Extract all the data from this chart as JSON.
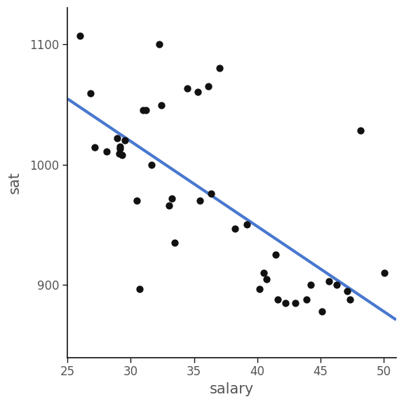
{
  "salary": [
    25.994,
    26.8,
    27.17,
    28.094,
    28.95,
    29.078,
    29.132,
    29.161,
    29.326,
    29.542,
    30.456,
    30.678,
    30.993,
    31.223,
    31.667,
    32.252,
    32.4,
    33.016,
    33.234,
    33.486,
    34.449,
    35.28,
    35.49,
    36.152,
    36.361,
    37.047,
    38.243,
    39.167,
    40.196,
    40.523,
    40.76,
    41.48,
    41.623,
    42.256,
    43.04,
    43.89,
    44.218,
    45.117,
    45.695,
    46.31,
    47.111,
    47.37,
    48.19,
    50.045
  ],
  "sat": [
    1107,
    1059,
    1014,
    1011,
    1022,
    1009,
    1013,
    1015,
    1008,
    1020,
    970,
    897,
    1045,
    1045,
    1000,
    1100,
    1049,
    966,
    972,
    935,
    1063,
    1060,
    970,
    1065,
    976,
    1080,
    947,
    950,
    897,
    910,
    905,
    925,
    888,
    885,
    885,
    888,
    900,
    878,
    903,
    900,
    895,
    888,
    1028,
    910
  ],
  "xlim": [
    25,
    51
  ],
  "ylim": [
    840,
    1130
  ],
  "xticks": [
    25,
    30,
    35,
    40,
    45,
    50
  ],
  "yticks": [
    900,
    1000,
    1100
  ],
  "xlabel": "salary",
  "ylabel": "sat",
  "dot_color": "#111111",
  "line_color": "#4878CF",
  "bg_color": "#ffffff",
  "dot_size": 55,
  "line_width": 3.0,
  "font_size_labels": 15,
  "font_size_ticks": 12,
  "label_color": "#555555",
  "spine_color": "#111111"
}
